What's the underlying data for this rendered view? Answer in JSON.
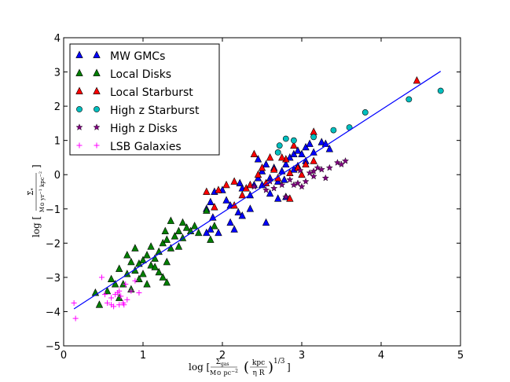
{
  "chart_data": {
    "type": "scatter",
    "xlabel": {
      "prefix": "log [",
      "num": "Σ",
      "num_sub": "gas",
      "den": "M⊙ pc",
      "den_sup": "−2",
      "paren_num": "kpc",
      "paren_den": "η R",
      "exponent": "1/3",
      "suffix": "]"
    },
    "ylabel": {
      "prefix": "log [",
      "num": "Σ̇",
      "num_sub": "*",
      "den": "M⊙ yr",
      "den_sup1": "−1",
      "den_unit": " kpc",
      "den_sup2": "−2",
      "suffix": "]"
    },
    "xlim": [
      0,
      5
    ],
    "ylim": [
      -5,
      4
    ],
    "xticks": [
      0,
      1,
      2,
      3,
      4,
      5
    ],
    "yticks": [
      -5,
      -4,
      -3,
      -2,
      -1,
      0,
      1,
      2,
      3,
      4
    ],
    "xtick_labels": [
      "0",
      "1",
      "2",
      "3",
      "4",
      "5"
    ],
    "ytick_labels": [
      "−5",
      "−4",
      "−3",
      "−2",
      "−1",
      "0",
      "1",
      "2",
      "3",
      "4"
    ],
    "legend_position": "top-left",
    "fit_line": {
      "x": [
        0.13,
        4.75
      ],
      "y": [
        -3.92,
        3.02
      ],
      "color": "#0000ff"
    },
    "series": [
      {
        "name": "MW GMCs",
        "marker": "triangle",
        "color": "#0000ff",
        "points": [
          [
            1.9,
            -0.5
          ],
          [
            1.85,
            -0.8
          ],
          [
            1.8,
            -1.0
          ],
          [
            1.85,
            -1.6
          ],
          [
            1.8,
            -1.7
          ],
          [
            1.95,
            -1.7
          ],
          [
            2.05,
            -0.75
          ],
          [
            2.1,
            -0.9
          ],
          [
            2.2,
            -1.1
          ],
          [
            2.25,
            -1.2
          ],
          [
            2.1,
            -1.4
          ],
          [
            2.15,
            -1.6
          ],
          [
            2.25,
            -0.4
          ],
          [
            2.35,
            -0.6
          ],
          [
            2.4,
            -0.3
          ],
          [
            2.45,
            -0.1
          ],
          [
            2.5,
            -0.3
          ],
          [
            2.5,
            0.1
          ],
          [
            2.55,
            0.3
          ],
          [
            2.6,
            -0.1
          ],
          [
            2.65,
            0.2
          ],
          [
            2.7,
            -0.2
          ],
          [
            2.75,
            0.1
          ],
          [
            2.8,
            0.3
          ],
          [
            2.85,
            0.5
          ],
          [
            2.9,
            0.6
          ],
          [
            2.95,
            0.7
          ],
          [
            3.0,
            0.6
          ],
          [
            3.05,
            0.8
          ],
          [
            3.1,
            0.9
          ],
          [
            3.15,
            0.65
          ],
          [
            3.25,
            0.95
          ],
          [
            3.3,
            0.9
          ],
          [
            3.35,
            0.75
          ],
          [
            3.05,
            0.4
          ],
          [
            2.95,
            0.25
          ],
          [
            2.7,
            -0.7
          ],
          [
            2.8,
            -0.65
          ],
          [
            2.55,
            -1.4
          ],
          [
            2.35,
            -1.0
          ],
          [
            2.0,
            -0.45
          ],
          [
            2.6,
            -0.55
          ],
          [
            2.9,
            0.15
          ],
          [
            2.45,
            0.45
          ],
          [
            1.88,
            -1.25
          ],
          [
            2.22,
            -0.25
          ],
          [
            2.78,
            -0.15
          ]
        ]
      },
      {
        "name": "Local Disks",
        "marker": "triangle",
        "color": "#007f00",
        "points": [
          [
            0.45,
            -3.8
          ],
          [
            0.4,
            -3.45
          ],
          [
            0.6,
            -3.05
          ],
          [
            0.55,
            -3.4
          ],
          [
            0.65,
            -3.2
          ],
          [
            0.7,
            -2.75
          ],
          [
            0.8,
            -2.9
          ],
          [
            0.85,
            -2.55
          ],
          [
            0.9,
            -2.8
          ],
          [
            0.95,
            -2.6
          ],
          [
            1.0,
            -2.5
          ],
          [
            1.05,
            -2.35
          ],
          [
            1.0,
            -2.9
          ],
          [
            1.1,
            -2.65
          ],
          [
            1.15,
            -2.45
          ],
          [
            1.2,
            -2.25
          ],
          [
            1.25,
            -2.0
          ],
          [
            1.3,
            -1.9
          ],
          [
            1.35,
            -2.15
          ],
          [
            1.4,
            -1.8
          ],
          [
            1.45,
            -1.65
          ],
          [
            1.5,
            -1.85
          ],
          [
            1.55,
            -1.55
          ],
          [
            1.6,
            -1.65
          ],
          [
            1.65,
            -1.5
          ],
          [
            1.7,
            -1.7
          ],
          [
            1.35,
            -1.35
          ],
          [
            1.3,
            -2.55
          ],
          [
            1.2,
            -2.85
          ],
          [
            1.05,
            -3.2
          ],
          [
            0.95,
            -3.05
          ],
          [
            0.85,
            -3.35
          ],
          [
            1.25,
            -3.0
          ],
          [
            1.3,
            -3.15
          ],
          [
            0.75,
            -3.2
          ],
          [
            1.85,
            -1.9
          ],
          [
            1.9,
            -1.5
          ],
          [
            1.8,
            -1.05
          ],
          [
            1.1,
            -2.1
          ],
          [
            0.9,
            -2.15
          ],
          [
            0.8,
            -2.35
          ],
          [
            1.15,
            -2.7
          ],
          [
            0.7,
            -3.6
          ],
          [
            1.45,
            -2.1
          ],
          [
            1.28,
            -1.65
          ],
          [
            1.5,
            -1.4
          ]
        ]
      },
      {
        "name": "Local Starburst",
        "marker": "triangle",
        "color": "#ff0000",
        "points": [
          [
            1.8,
            -0.5
          ],
          [
            1.95,
            -0.45
          ],
          [
            2.05,
            -0.3
          ],
          [
            2.15,
            -0.2
          ],
          [
            2.3,
            -0.4
          ],
          [
            2.4,
            0.6
          ],
          [
            2.45,
            0.0
          ],
          [
            2.55,
            -0.25
          ],
          [
            2.65,
            0.15
          ],
          [
            2.7,
            -0.1
          ],
          [
            2.8,
            0.45
          ],
          [
            2.85,
            0.05
          ],
          [
            2.95,
            0.2
          ],
          [
            3.05,
            0.3
          ],
          [
            3.15,
            1.25
          ],
          [
            3.15,
            0.4
          ],
          [
            2.9,
            0.85
          ],
          [
            2.6,
            0.5
          ],
          [
            2.35,
            -0.3
          ],
          [
            2.15,
            -0.9
          ],
          [
            1.9,
            -0.95
          ],
          [
            4.45,
            2.75
          ],
          [
            2.75,
            0.5
          ],
          [
            2.5,
            0.2
          ],
          [
            2.85,
            -0.7
          ],
          [
            3.0,
            0.0
          ],
          [
            2.25,
            -0.6
          ]
        ]
      },
      {
        "name": "High z Starburst",
        "marker": "circle",
        "color": "#00bfbf",
        "points": [
          [
            2.7,
            0.65
          ],
          [
            2.72,
            0.85
          ],
          [
            2.8,
            1.05
          ],
          [
            2.9,
            1.0
          ],
          [
            3.15,
            1.1
          ],
          [
            3.4,
            1.3
          ],
          [
            3.6,
            1.38
          ],
          [
            3.8,
            1.82
          ],
          [
            4.35,
            2.2
          ],
          [
            4.75,
            2.45
          ]
        ]
      },
      {
        "name": "High z Disks",
        "marker": "star",
        "color": "#7f007f",
        "points": [
          [
            2.4,
            -0.35
          ],
          [
            2.55,
            -0.45
          ],
          [
            2.6,
            -0.2
          ],
          [
            2.65,
            -0.4
          ],
          [
            2.75,
            -0.3
          ],
          [
            2.8,
            -0.65
          ],
          [
            2.85,
            -0.15
          ],
          [
            2.9,
            -0.3
          ],
          [
            2.95,
            -0.25
          ],
          [
            3.0,
            -0.35
          ],
          [
            3.05,
            -0.2
          ],
          [
            3.1,
            0.05
          ],
          [
            3.15,
            -0.05
          ],
          [
            3.2,
            0.2
          ],
          [
            3.25,
            0.15
          ],
          [
            3.3,
            -0.1
          ],
          [
            3.35,
            0.2
          ],
          [
            3.45,
            0.35
          ],
          [
            3.5,
            0.3
          ],
          [
            3.55,
            0.4
          ],
          [
            3.15,
            0.1
          ],
          [
            2.98,
            0.12
          ]
        ]
      },
      {
        "name": "LSB Galaxies",
        "marker": "plus",
        "color": "#ff00ff",
        "points": [
          [
            0.13,
            -3.75
          ],
          [
            0.15,
            -4.2
          ],
          [
            0.48,
            -3.0
          ],
          [
            0.52,
            -3.5
          ],
          [
            0.55,
            -3.75
          ],
          [
            0.6,
            -3.6
          ],
          [
            0.63,
            -3.85
          ],
          [
            0.65,
            -3.5
          ],
          [
            0.68,
            -3.45
          ],
          [
            0.7,
            -3.8
          ],
          [
            0.72,
            -3.55
          ],
          [
            0.75,
            -3.75
          ],
          [
            0.78,
            -3.2
          ],
          [
            0.8,
            -3.65
          ],
          [
            0.85,
            -3.4
          ],
          [
            0.9,
            -3.1
          ],
          [
            0.95,
            -3.45
          ],
          [
            0.6,
            -3.8
          ],
          [
            0.7,
            -3.4
          ],
          [
            0.76,
            -3.8
          ]
        ]
      }
    ]
  }
}
